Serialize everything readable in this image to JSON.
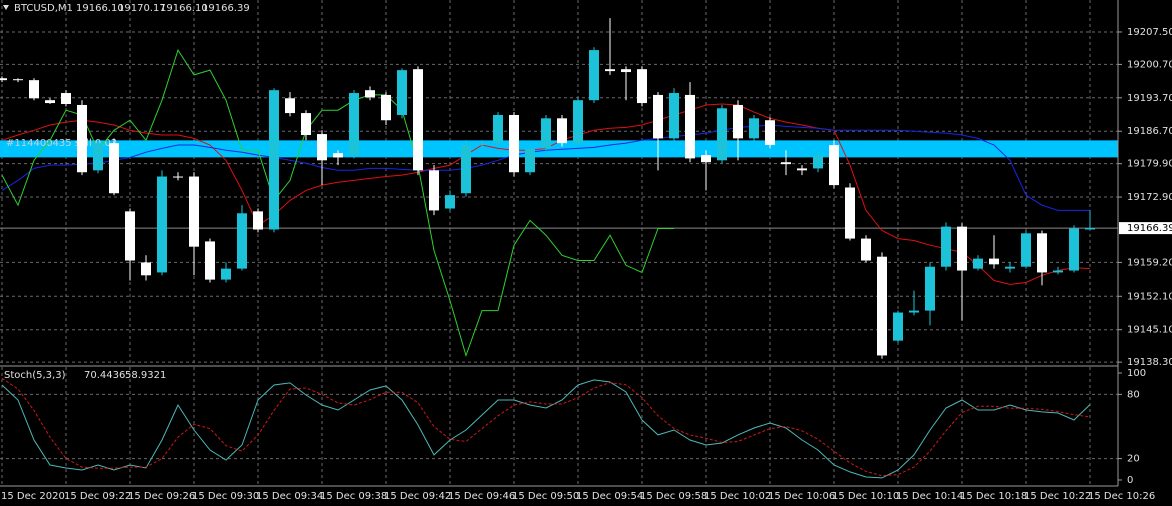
{
  "chart_data": [
    {
      "type": "candlestick",
      "title": "BTCUSD,M1",
      "header_values": [
        "19166.10",
        "19170.17",
        "19166.10",
        "19166.39"
      ],
      "categories": [
        "15 Dec 2020",
        null,
        null,
        null,
        "15 Dec 09:22",
        null,
        null,
        null,
        "15 Dec 09:26",
        null,
        null,
        null,
        "15 Dec 09:30",
        null,
        null,
        null,
        "15 Dec 09:34",
        null,
        null,
        null,
        "15 Dec 09:38",
        null,
        null,
        null,
        "15 Dec 09:42",
        null,
        null,
        null,
        "15 Dec 09:46",
        null,
        null,
        null,
        "15 Dec 09:50",
        null,
        null,
        null,
        "15 Dec 09:54",
        null,
        null,
        null,
        "15 Dec 09:58",
        null,
        null,
        null,
        "15 Dec 10:02",
        null,
        null,
        null,
        "15 Dec 10:06",
        null,
        null,
        null,
        "15 Dec 10:10",
        null,
        null,
        null,
        "15 Dec 10:14",
        null,
        null,
        null,
        "15 Dec 10:18",
        null,
        null,
        null,
        "15 Dec 10:22",
        null,
        null,
        null,
        "15 Dec 10:26"
      ],
      "open": [
        19197.8,
        19197.6,
        19197.4,
        19193.2,
        19194.7,
        19192.2,
        19178.5,
        19184.2,
        19169.9,
        19159.2,
        19157.1,
        19177.2,
        19177.2,
        19163.6,
        19155.6,
        19157.9,
        19169.9,
        19166.1,
        19193.6,
        19190.5,
        19186.1,
        19182.1,
        19181.7,
        19195.3,
        19194.3,
        19190.1,
        19199.7,
        19178.5,
        19170.5,
        19173.7,
        19183.8,
        19184.2,
        19190.1,
        19178.1,
        19183.1,
        19189.4,
        19184.2,
        19193.2,
        19199.7,
        19199.7,
        19199.7,
        19194.3,
        19185.2,
        19194.3,
        19181.7,
        19180.6,
        19192.2,
        19185.2,
        19189.0,
        19180.2,
        19178.9,
        19178.9,
        19183.8,
        19174.9,
        19164.2,
        19160.4,
        19142.8,
        19148.7,
        19149.1,
        19158.3,
        19166.7,
        19157.9,
        19160.0,
        19157.9,
        19158.3,
        19165.3,
        19157.1,
        19157.5,
        19166.1
      ],
      "high": [
        19198.2,
        19197.8,
        19197.8,
        19193.6,
        19195.3,
        19193.2,
        19184.8,
        19185.2,
        19170.5,
        19160.7,
        19178.5,
        19178.1,
        19178.1,
        19164.2,
        19159.2,
        19171.2,
        19170.5,
        19195.7,
        19194.9,
        19191.1,
        19186.9,
        19182.7,
        19195.3,
        19196.1,
        19194.9,
        19199.9,
        19200.3,
        19179.6,
        19174.3,
        19184.8,
        19184.8,
        19190.7,
        19190.7,
        19183.8,
        19190.1,
        19190.1,
        19193.8,
        19204.3,
        19210.4,
        19200.3,
        19200.3,
        19194.9,
        19195.7,
        19197.0,
        19182.7,
        19192.2,
        19193.2,
        19190.1,
        19189.6,
        19182.7,
        19179.6,
        19182.7,
        19184.8,
        19175.8,
        19164.9,
        19161.3,
        19149.1,
        19153.3,
        19159.2,
        19167.6,
        19167.4,
        19160.7,
        19164.9,
        19159.2,
        19165.9,
        19165.9,
        19158.3,
        19167.0,
        19170.17
      ],
      "low": [
        19197.0,
        19197.0,
        19193.2,
        19192.4,
        19191.9,
        19177.5,
        19177.9,
        19173.3,
        19155.4,
        19155.4,
        19156.5,
        19176.4,
        19156.5,
        19155.0,
        19155.0,
        19157.5,
        19165.5,
        19165.5,
        19189.8,
        19184.8,
        19175.4,
        19179.6,
        19181.0,
        19193.2,
        19188.0,
        19189.4,
        19177.5,
        19169.1,
        19170.1,
        19173.0,
        19183.1,
        19183.5,
        19177.2,
        19177.5,
        19182.7,
        19183.5,
        19183.8,
        19192.6,
        19198.5,
        19193.2,
        19191.9,
        19178.5,
        19184.4,
        19180.2,
        19174.3,
        19180.0,
        19180.6,
        19184.6,
        19183.1,
        19177.5,
        19177.5,
        19178.1,
        19174.7,
        19163.8,
        19159.2,
        19139.0,
        19142.4,
        19148.1,
        19146.0,
        19157.5,
        19147.0,
        19157.5,
        19157.9,
        19157.1,
        19157.9,
        19154.4,
        19156.7,
        19157.1,
        19166.1
      ],
      "close": [
        19197.4,
        19197.4,
        19193.6,
        19192.6,
        19192.4,
        19178.1,
        19184.2,
        19173.7,
        19159.6,
        19156.5,
        19177.2,
        19177.0,
        19162.5,
        19155.6,
        19157.9,
        19169.5,
        19166.1,
        19195.3,
        19190.5,
        19185.9,
        19180.6,
        19181.2,
        19194.7,
        19193.8,
        19189.0,
        19199.5,
        19178.5,
        19170.1,
        19173.3,
        19183.8,
        19184.0,
        19190.1,
        19178.1,
        19183.1,
        19189.4,
        19184.2,
        19193.2,
        19203.7,
        19199.3,
        19199.1,
        19192.6,
        19185.2,
        19194.7,
        19181.0,
        19180.2,
        19191.5,
        19185.2,
        19189.4,
        19183.8,
        19179.8,
        19178.5,
        19181.7,
        19175.4,
        19164.2,
        19159.6,
        19139.7,
        19148.7,
        19149.1,
        19158.3,
        19166.7,
        19157.5,
        19160.0,
        19158.8,
        19158.3,
        19165.3,
        19157.1,
        19157.5,
        19166.3,
        19166.39
      ],
      "up_color": "#1cc3d8",
      "down_color": "#ffffff",
      "series": [
        {
          "color": "#e01010",
          "values": [
            19184.8,
            19185.9,
            19186.9,
            19188.0,
            19188.6,
            19189.0,
            19188.6,
            19188.0,
            19186.9,
            19186.3,
            19185.9,
            19185.9,
            19185.2,
            19183.8,
            19180.6,
            19174.3,
            19167.0,
            19169.1,
            19172.2,
            19174.3,
            19175.4,
            19176.0,
            19176.4,
            19176.8,
            19177.2,
            19177.5,
            19178.1,
            19178.9,
            19179.6,
            19181.7,
            19183.8,
            19183.1,
            19182.7,
            19182.7,
            19183.1,
            19184.8,
            19185.9,
            19186.9,
            19187.3,
            19187.5,
            19188.0,
            19189.0,
            19190.1,
            19191.1,
            19192.2,
            19192.4,
            19192.2,
            19190.7,
            19189.4,
            19188.6,
            19188.0,
            19187.3,
            19186.9,
            19179.6,
            19170.1,
            19165.9,
            19164.2,
            19163.8,
            19162.8,
            19162.1,
            19161.3,
            19158.6,
            19155.4,
            19154.6,
            19155.0,
            19156.5,
            19157.5,
            19158.1,
            19157.9
          ]
        },
        {
          "color": "#1a24e8",
          "values": [
            19174.3,
            19176.4,
            19178.9,
            19179.6,
            19179.6,
            19179.8,
            19180.0,
            19180.6,
            19181.2,
            19182.3,
            19183.1,
            19183.8,
            19183.8,
            19183.3,
            19182.7,
            19182.3,
            19181.7,
            19181.2,
            19180.6,
            19180.0,
            19179.1,
            19178.5,
            19178.5,
            19178.9,
            19178.9,
            19178.7,
            19178.5,
            19178.5,
            19178.5,
            19178.9,
            19179.6,
            19180.6,
            19181.7,
            19182.3,
            19182.7,
            19182.9,
            19183.1,
            19183.3,
            19183.8,
            19184.2,
            19184.8,
            19185.2,
            19185.6,
            19185.9,
            19186.3,
            19186.9,
            19187.5,
            19187.7,
            19188.0,
            19187.7,
            19187.5,
            19187.3,
            19186.9,
            19186.9,
            19186.9,
            19186.9,
            19186.9,
            19186.7,
            19186.5,
            19186.3,
            19185.9,
            19185.2,
            19183.8,
            19180.6,
            19173.3,
            19171.2,
            19170.1,
            19170.1,
            19170.1
          ]
        },
        {
          "color": "#2fd12f",
          "values": [
            19177.5,
            19171.2,
            19180.6,
            19184.8,
            19191.1,
            19190.1,
            19182.7,
            19186.9,
            19189.0,
            19184.8,
            19193.2,
            19203.7,
            19198.5,
            19199.5,
            19193.2,
            19182.7,
            19182.7,
            19172.2,
            19176.4,
            19186.9,
            19191.1,
            19191.1,
            19193.2,
            19194.3,
            19194.3,
            19191.1,
            19179.6,
            19161.7,
            19151.2,
            19139.7,
            19149.1,
            19149.1,
            19162.8,
            19168.0,
            19164.9,
            19160.7,
            19159.6,
            19159.6,
            19164.9,
            19158.6,
            19157.1,
            19166.3,
            19166.3,
            null,
            null,
            null,
            null,
            null,
            null,
            null,
            null,
            null,
            null,
            null,
            null,
            null,
            null,
            null,
            null,
            null,
            null,
            null,
            null,
            null,
            null,
            null,
            null,
            null,
            null
          ]
        }
      ],
      "ylim": [
        19137.7,
        19214.2
      ],
      "yticks": [
        {
          "value": 19207.5,
          "label": "19207.50"
        },
        {
          "value": 19200.7,
          "label": "19200.70"
        },
        {
          "value": 19193.7,
          "label": "19193.70"
        },
        {
          "value": 19186.7,
          "label": "19186.70"
        },
        {
          "value": 19179.9,
          "label": "19179.90"
        },
        {
          "value": 19172.9,
          "label": "19172.90"
        },
        {
          "value": 19159.2,
          "label": "19159.20"
        },
        {
          "value": 19152.1,
          "label": "19152.10"
        },
        {
          "value": 19145.1,
          "label": "19145.10"
        },
        {
          "value": 19138.3,
          "label": "19138.30"
        }
      ],
      "last_price": 19166.39,
      "trade_level": {
        "value": 19183.0,
        "label": "#114400435 sell 0.02"
      },
      "grid": true
    },
    {
      "type": "line",
      "title": "Stoch(5,3,3)",
      "series": [
        {
          "color": "#4fb8b8",
          "values": [
            88.8,
            74.8,
            37.4,
            14.0,
            11.2,
            9.3,
            14.0,
            9.3,
            14.0,
            11.2,
            37.4,
            70.1,
            46.7,
            28.0,
            18.7,
            32.7,
            74.8,
            88.8,
            90.7,
            79.4,
            70.1,
            65.4,
            74.8,
            84.1,
            87.9,
            74.8,
            51.4,
            23.4,
            37.4,
            46.7,
            60.7,
            74.8,
            74.8,
            70.1,
            67.3,
            74.8,
            88.8,
            93.5,
            91.6,
            82.2,
            56.1,
            42.1,
            46.7,
            37.4,
            32.7,
            34.6,
            42.1,
            48.6,
            53.3,
            48.6,
            37.4,
            28.0,
            14.0,
            7.5,
            2.8,
            1.9,
            9.3,
            23.4,
            46.7,
            67.3,
            74.8,
            65.4,
            65.4,
            70.1,
            65.4,
            63.6,
            62.6,
            56.1,
            70.4436
          ]
        },
        {
          "color": "#d01818",
          "dashed": true,
          "values": [
            95,
            85,
            65,
            40,
            20,
            12,
            11,
            11,
            12,
            12,
            20,
            40,
            52,
            48,
            32,
            27,
            42,
            65,
            85,
            86,
            80,
            72,
            70,
            75,
            82,
            82,
            72,
            50,
            38,
            36,
            48,
            60,
            70,
            73,
            71,
            71,
            77,
            86,
            91,
            89,
            77,
            60,
            48,
            42,
            39,
            35,
            36,
            42,
            48,
            50,
            46,
            38,
            27,
            16,
            8,
            4,
            5,
            12,
            27,
            46,
            63,
            69,
            69,
            67,
            67,
            66,
            64,
            61,
            58.9321
          ]
        }
      ],
      "ylim": [
        -4.7,
        105.6
      ],
      "yticks": [
        100,
        80,
        20,
        0
      ],
      "grid": true
    }
  ]
}
